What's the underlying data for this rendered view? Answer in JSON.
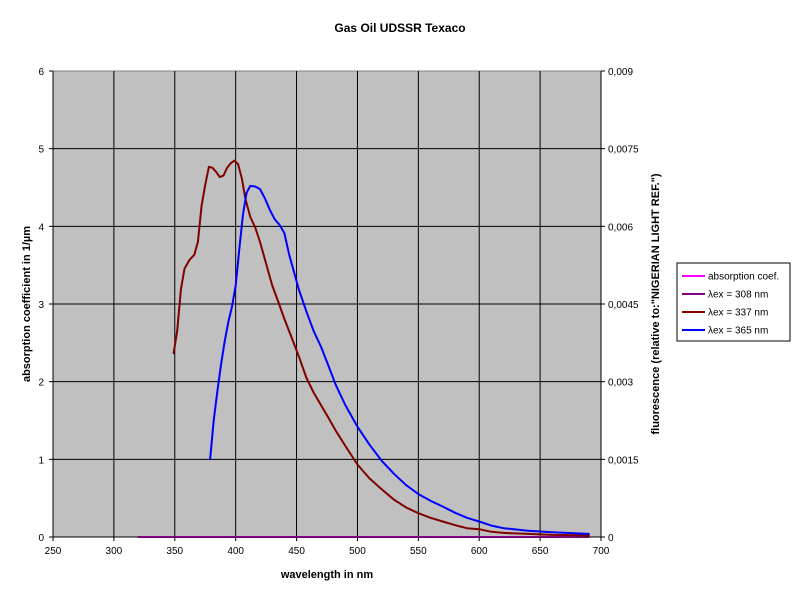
{
  "chart_data": {
    "type": "line",
    "title": "Gas Oil UDSSR Texaco",
    "xlabel": "wavelength in nm",
    "ylabel": "absorption coefficient in 1/µm",
    "y2label": "fluorescence (relative to:\"NIGERIAN LIGHT REF.\")",
    "xlim": [
      250,
      700
    ],
    "ylim": [
      0,
      6
    ],
    "y2lim": [
      0,
      0.009
    ],
    "x_ticks": [
      "250",
      "300",
      "350",
      "400",
      "450",
      "500",
      "550",
      "600",
      "650",
      "700"
    ],
    "y_ticks": [
      "0",
      "1",
      "2",
      "3",
      "4",
      "5",
      "6"
    ],
    "y2_ticks": [
      "0",
      "0,0015",
      "0,003",
      "0,0045",
      "0,006",
      "0,0075",
      "0,009"
    ],
    "grid": true,
    "plot_background": "#C0C0C0",
    "legend_position": "right",
    "series": [
      {
        "name": "absorption coef.",
        "axis": "left",
        "color": "#FF00FF",
        "x": [
          320,
          690
        ],
        "y": [
          0,
          0
        ]
      },
      {
        "name": "λex = 308 nm",
        "axis": "right",
        "color": "#800080",
        "x": [],
        "y": []
      },
      {
        "name": "λex = 337 nm",
        "axis": "right",
        "color": "#800000",
        "x": [
          349,
          352,
          355,
          358,
          362,
          366,
          369,
          372,
          375,
          378,
          381,
          384,
          387,
          390,
          393,
          396,
          399,
          402,
          405,
          408,
          412,
          416,
          420,
          425,
          430,
          435,
          440,
          446,
          452,
          458,
          464,
          470,
          476,
          482,
          490,
          500,
          510,
          520,
          530,
          540,
          550,
          560,
          570,
          580,
          590,
          600,
          610,
          620,
          640,
          660,
          690
        ],
        "y": [
          0.00355,
          0.00398,
          0.00478,
          0.00518,
          0.00535,
          0.00545,
          0.0057,
          0.0064,
          0.0068,
          0.00715,
          0.00713,
          0.00705,
          0.00695,
          0.00698,
          0.00713,
          0.00722,
          0.00727,
          0.0072,
          0.00693,
          0.00653,
          0.00618,
          0.00598,
          0.0057,
          0.00528,
          0.00486,
          0.00454,
          0.00421,
          0.00385,
          0.00348,
          0.00308,
          0.00279,
          0.00255,
          0.00231,
          0.00206,
          0.00176,
          0.0014,
          0.00113,
          0.00092,
          0.00072,
          0.00057,
          0.00046,
          0.00037,
          0.0003,
          0.00023,
          0.00017,
          0.00015,
          0.0001,
          8e-05,
          6e-05,
          4e-05,
          3e-05
        ]
      },
      {
        "name": "λex = 365 nm",
        "axis": "right",
        "color": "#0000FF",
        "x": [
          379,
          382,
          385,
          388,
          391,
          394,
          397,
          400,
          403,
          406,
          409,
          412,
          416,
          420,
          424,
          428,
          432,
          436,
          440,
          444,
          448,
          452,
          458,
          464,
          470,
          476,
          482,
          490,
          500,
          510,
          520,
          530,
          540,
          550,
          560,
          570,
          580,
          590,
          600,
          610,
          620,
          640,
          660,
          690
        ],
        "y": [
          0.0015,
          0.00225,
          0.00282,
          0.00334,
          0.00378,
          0.00416,
          0.00445,
          0.00486,
          0.00556,
          0.00623,
          0.00665,
          0.00678,
          0.00677,
          0.00672,
          0.00654,
          0.00632,
          0.00614,
          0.00603,
          0.00587,
          0.00545,
          0.00511,
          0.00477,
          0.00436,
          0.00398,
          0.00368,
          0.00332,
          0.00295,
          0.00255,
          0.00213,
          0.00178,
          0.00147,
          0.00122,
          0.001,
          0.00083,
          0.0007,
          0.00059,
          0.00047,
          0.00037,
          0.0003,
          0.00022,
          0.00017,
          0.00012,
          9e-05,
          6e-05
        ]
      }
    ]
  }
}
